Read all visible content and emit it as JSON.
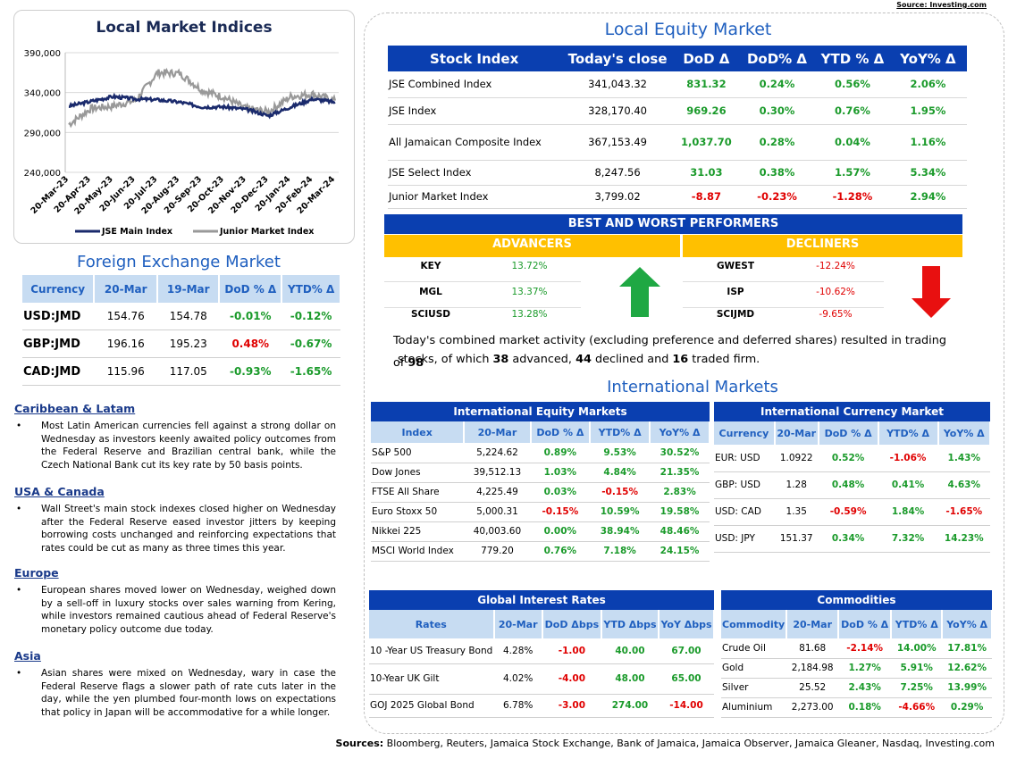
{
  "source_top": "Source: Investing.com",
  "chart": {
    "title": "Local Market Indices",
    "y_ticks": [
      "390,000",
      "340,000",
      "290,000",
      "240,000"
    ],
    "x_ticks": [
      "20-Mar-23",
      "20-Apr-23",
      "20-May-23",
      "20-Jun-23",
      "20-Jul-23",
      "20-Aug-23",
      "20-Sep-23",
      "20-Oct-23",
      "20-Nov-23",
      "20-Dec-23",
      "20-Jan-24",
      "20-Feb-24",
      "20-Mar-24"
    ],
    "legend_main": "JSE Main Index",
    "legend_junior": "Junior Market Index",
    "main_color": "#1a2a6c",
    "junior_color": "#999999"
  },
  "chart_data": {
    "type": "line",
    "title": "Local Market Indices",
    "ylim": [
      240000,
      390000
    ],
    "x": [
      "20-Mar-23",
      "20-Apr-23",
      "20-May-23",
      "20-Jun-23",
      "20-Jul-23",
      "20-Aug-23",
      "20-Sep-23",
      "20-Oct-23",
      "20-Nov-23",
      "20-Dec-23",
      "20-Jan-24",
      "20-Feb-24",
      "20-Mar-24"
    ],
    "series": [
      {
        "name": "JSE Main Index",
        "values": [
          323000,
          329000,
          335000,
          332000,
          331000,
          328000,
          322000,
          322000,
          319000,
          311000,
          322000,
          332000,
          328000
        ]
      },
      {
        "name": "Junior Market Index",
        "values": [
          300000,
          320000,
          323000,
          330000,
          365000,
          364000,
          343000,
          334000,
          320000,
          316000,
          335000,
          338000,
          330000
        ]
      }
    ]
  },
  "fx": {
    "title": "Foreign Exchange Market",
    "headers": [
      "Currency",
      "20-Mar",
      "19-Mar",
      "DoD % Δ",
      "YTD% Δ"
    ],
    "rows": [
      [
        "USD:JMD",
        "154.76",
        "154.78",
        "-0.01%",
        "-0.12%"
      ],
      [
        "GBP:JMD",
        "196.16",
        "195.23",
        "0.48%",
        "-0.67%"
      ],
      [
        "CAD:JMD",
        "115.96",
        "117.05",
        "-0.93%",
        "-1.65%"
      ]
    ]
  },
  "news": [
    {
      "heading": "Caribbean & Latam",
      "bullet": "•",
      "text": "Most Latin American currencies fell against a strong dollar on Wednesday as investors keenly awaited policy outcomes from the Federal Reserve and Brazilian central bank, while the Czech National Bank cut its key rate by 50 basis points."
    },
    {
      "heading": "USA & Canada",
      "bullet": "•",
      "text": "Wall Street's main stock indexes closed higher on Wednesday after the Federal Reserve eased investor jitters by keeping borrowing costs unchanged and reinforcing expectations that rates could be cut as many as three times this year."
    },
    {
      "heading": "Europe",
      "bullet": "•",
      "text": "European shares moved lower on Wednesday, weighed down by a sell-off in luxury stocks over sales warning from Kering, while investors remained cautious ahead of Federal Reserve's monetary policy outcome due today."
    },
    {
      "heading": "Asia",
      "bullet": "•",
      "text": "Asian shares were mixed on Wednesday, wary in case the Federal Reserve flags a slower path of rate cuts later in the day, while the yen plumbed four-month lows on expectations that policy in Japan will be accommodative for a while longer."
    }
  ],
  "lem": {
    "title": "Local Equity Market",
    "headers": [
      "Stock Index",
      "Today's close",
      "DoD  Δ",
      "DoD% Δ",
      "YTD % Δ",
      "YoY% Δ"
    ],
    "rows": [
      [
        "JSE Combined Index",
        "341,043.32",
        "831.32",
        "0.24%",
        "0.56%",
        "2.06%"
      ],
      [
        "JSE Index",
        "328,170.40",
        "969.26",
        "0.30%",
        "0.76%",
        "1.95%"
      ],
      [
        "All Jamaican Composite Index",
        "367,153.49",
        "1,037.70",
        "0.28%",
        "0.04%",
        "1.16%"
      ],
      [
        "JSE Select Index",
        "8,247.56",
        "31.03",
        "0.38%",
        "1.57%",
        "5.34%"
      ],
      [
        "Junior Market Index",
        "3,799.02",
        "-8.87",
        "-0.23%",
        "-1.28%",
        "2.94%"
      ]
    ]
  },
  "performers": {
    "title": "BEST AND WORST PERFORMERS",
    "advancers_label": "ADVANCERS",
    "decliners_label": "DECLINERS",
    "advancers": [
      [
        "KEY",
        "13.72%"
      ],
      [
        "MGL",
        "13.37%"
      ],
      [
        "SCIUSD",
        "13.28%"
      ]
    ],
    "decliners": [
      [
        "GWEST",
        "-12.24%"
      ],
      [
        "ISP",
        "-10.62%"
      ],
      [
        "SCIJMD",
        "-9.65%"
      ]
    ]
  },
  "summary": {
    "l1a": "Today's combined market activity (excluding preference and deferred shares) resulted in trading of ",
    "total": "98",
    "l2a": "stocks, of which ",
    "adv": "38",
    "l2b": " advanced, ",
    "dec": "44",
    "l2c": " declined and ",
    "firm": "16",
    "l2d": " traded firm."
  },
  "im": {
    "title": "International Markets",
    "equity": {
      "title": "International Equity Markets",
      "headers": [
        "Index",
        "20-Mar",
        "DoD % Δ",
        "YTD% Δ",
        "YoY% Δ"
      ],
      "rows": [
        [
          "S&P 500",
          "5,224.62",
          "0.89%",
          "9.53%",
          "30.52%"
        ],
        [
          "Dow Jones",
          "39,512.13",
          "1.03%",
          "4.84%",
          "21.35%"
        ],
        [
          "FTSE All Share",
          "4,225.49",
          "0.03%",
          "-0.15%",
          "2.83%"
        ],
        [
          "Euro Stoxx 50",
          "5,000.31",
          "-0.15%",
          "10.59%",
          "19.58%"
        ],
        [
          "Nikkei 225",
          "40,003.60",
          "0.00%",
          "38.94%",
          "48.46%"
        ],
        [
          "MSCI World Index",
          "779.20",
          "0.76%",
          "7.18%",
          "24.15%"
        ]
      ]
    },
    "currency": {
      "title": "International Currency Market",
      "headers": [
        "Currency",
        "20-Mar",
        "DoD % Δ",
        "YTD% Δ",
        "YoY% Δ"
      ],
      "rows": [
        [
          "EUR: USD",
          "1.0922",
          "0.52%",
          "-1.06%",
          "1.43%"
        ],
        [
          "GBP: USD",
          "1.28",
          "0.48%",
          "0.41%",
          "4.63%"
        ],
        [
          "USD: CAD",
          "1.35",
          "-0.59%",
          "1.84%",
          "-1.65%"
        ],
        [
          "USD: JPY",
          "151.37",
          "0.34%",
          "7.32%",
          "14.23%"
        ]
      ]
    },
    "rates": {
      "title": "Global Interest Rates",
      "headers": [
        "Rates",
        "20-Mar",
        "DoD Δbps",
        "YTD Δbps",
        "YoY Δbps"
      ],
      "rows": [
        [
          "10 -Year US Treasury Bond",
          "4.28%",
          "-1.00",
          "40.00",
          "67.00"
        ],
        [
          "10-Year UK Gilt",
          "4.02%",
          "-4.00",
          "48.00",
          "65.00"
        ],
        [
          "GOJ 2025 Global Bond",
          "6.78%",
          "-3.00",
          "274.00",
          "-14.00"
        ]
      ]
    },
    "commodities": {
      "title": "Commodities",
      "headers": [
        "Commodity",
        "20-Mar",
        "DoD % Δ",
        "YTD% Δ",
        "YoY% Δ"
      ],
      "rows": [
        [
          "Crude Oil",
          "81.68",
          "-2.14%",
          "14.00%",
          "17.81%"
        ],
        [
          "Gold",
          "2,184.98",
          "1.27%",
          "5.91%",
          "12.62%"
        ],
        [
          "Silver",
          "25.52",
          "2.43%",
          "7.25%",
          "13.99%"
        ],
        [
          "Aluminium",
          "2,273.00",
          "0.18%",
          "-4.66%",
          "0.29%"
        ]
      ]
    }
  },
  "sources": {
    "label": "Sources:",
    "text": " Bloomberg, Reuters, Jamaica Stock Exchange, Bank of Jamaica, Jamaica Observer, Jamaica Gleaner, Nasdaq, Investing.com"
  }
}
